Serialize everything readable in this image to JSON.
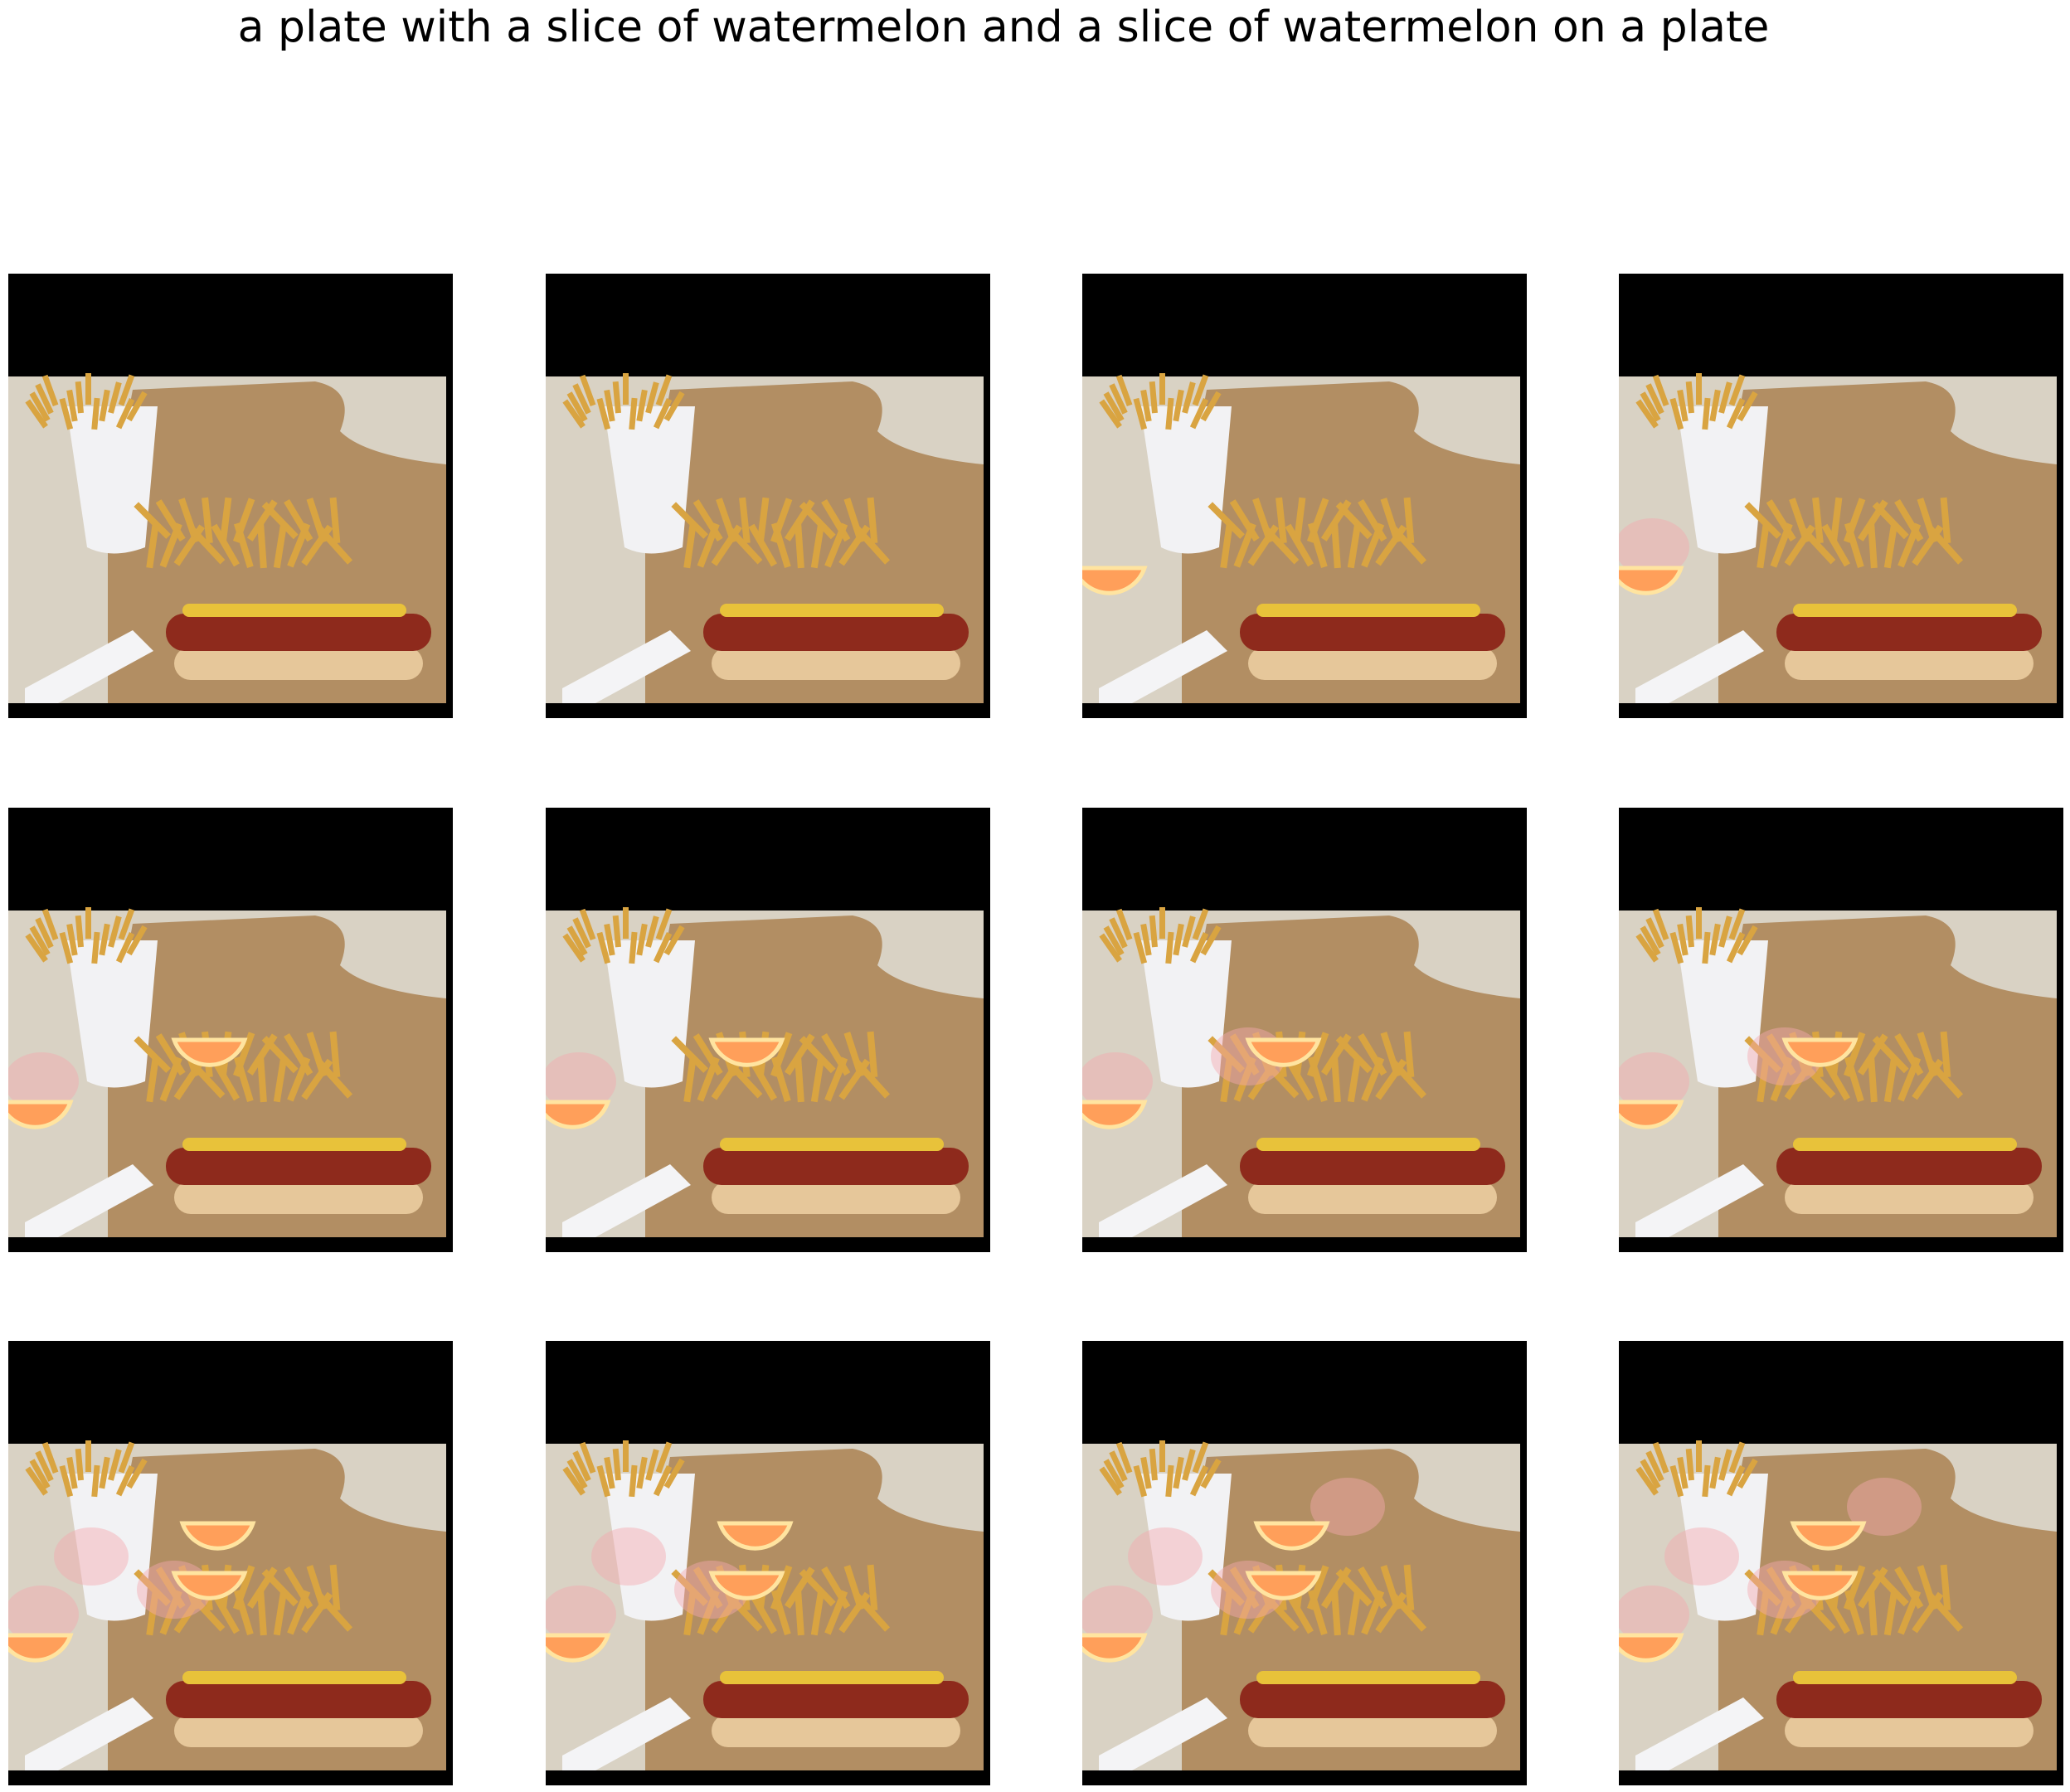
{
  "figure": {
    "caption": "a plate with a slice of watermelon and a slice of watermelon on a plate"
  },
  "grid": {
    "rows": 3,
    "columns": 4
  },
  "frames": [
    {
      "index": 1,
      "orange_slices": 0,
      "pink_ghosts": 0
    },
    {
      "index": 2,
      "orange_slices": 0,
      "pink_ghosts": 0
    },
    {
      "index": 3,
      "orange_slices": 1,
      "pink_ghosts": 0
    },
    {
      "index": 4,
      "orange_slices": 1,
      "pink_ghosts": 1
    },
    {
      "index": 5,
      "orange_slices": 2,
      "pink_ghosts": 1
    },
    {
      "index": 6,
      "orange_slices": 2,
      "pink_ghosts": 1
    },
    {
      "index": 7,
      "orange_slices": 2,
      "pink_ghosts": 2
    },
    {
      "index": 8,
      "orange_slices": 2,
      "pink_ghosts": 2
    },
    {
      "index": 9,
      "orange_slices": 3,
      "pink_ghosts": 3
    },
    {
      "index": 10,
      "orange_slices": 3,
      "pink_ghosts": 3
    },
    {
      "index": 11,
      "orange_slices": 3,
      "pink_ghosts": 4
    },
    {
      "index": 12,
      "orange_slices": 3,
      "pink_ghosts": 4
    }
  ],
  "colors": {
    "background": "#ffffff",
    "letterbox": "#000000",
    "counter": "#d9d2c4",
    "bag": "#b08a5e",
    "cup": "#f2f2f4",
    "fries": "#d9a441",
    "bun": "#e6c79a",
    "sausage": "#8e2a1c",
    "cheese": "#e8c23a",
    "orange_slice": "#ff9f5a",
    "ghost": "#f4a8b0"
  }
}
